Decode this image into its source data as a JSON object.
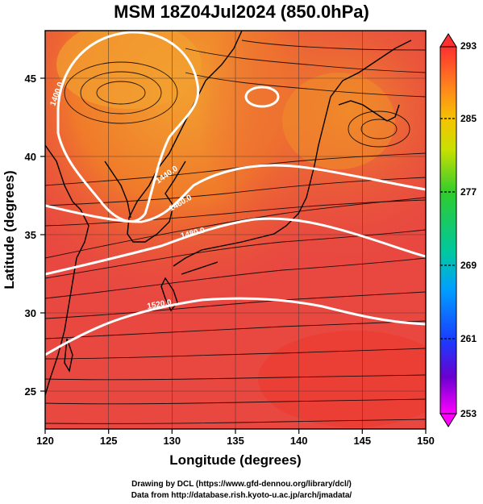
{
  "title": "MSM 18Z04Jul2024 (850.0hPa)",
  "x_axis": {
    "label": "Longitude (degrees)",
    "ticks": [
      "120",
      "125",
      "130",
      "135",
      "140",
      "145",
      "150"
    ]
  },
  "y_axis": {
    "label": "Latitude  (degrees)",
    "ticks": [
      "25",
      "30",
      "35",
      "40",
      "45"
    ]
  },
  "colorbar": {
    "ticks": [
      "293",
      "285",
      "277",
      "269",
      "261",
      "253"
    ],
    "colors": [
      "#ff3030",
      "#ff8c1a",
      "#f5c400",
      "#c8e000",
      "#2ecc2e",
      "#00c8a0",
      "#00a0ff",
      "#1a3cff",
      "#6a00d0",
      "#ff00ff"
    ]
  },
  "contour_labels": [
    "1400.0",
    "1440.0",
    "1460.0",
    "1480.0",
    "1520.0"
  ],
  "footer": {
    "line1": "Drawing by DCL (https://www.gfd-dennou.org/library/dcl/)",
    "line2": "Data from http://database.rish.kyoto-u.ac.jp/arch/jmadata/"
  },
  "map_colors": {
    "hot": "#e84840",
    "warm": "#f07a2a",
    "warmer_north": "#f2a030",
    "coast": "#000000",
    "contour": "#ffffff"
  }
}
